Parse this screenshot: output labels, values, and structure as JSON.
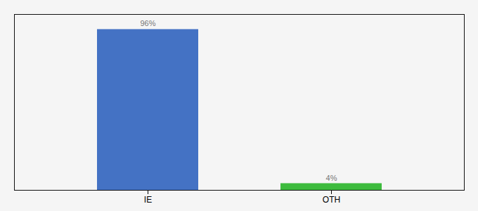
{
  "chart_data": {
    "type": "bar",
    "categories": [
      "IE",
      "OTH"
    ],
    "values": [
      96,
      4
    ],
    "value_labels": [
      "96%",
      "4%"
    ],
    "colors": [
      "#4472c4",
      "#3dbb3d"
    ],
    "ylim": [
      0,
      105
    ],
    "data_labels": true,
    "tick_labels": "x"
  }
}
